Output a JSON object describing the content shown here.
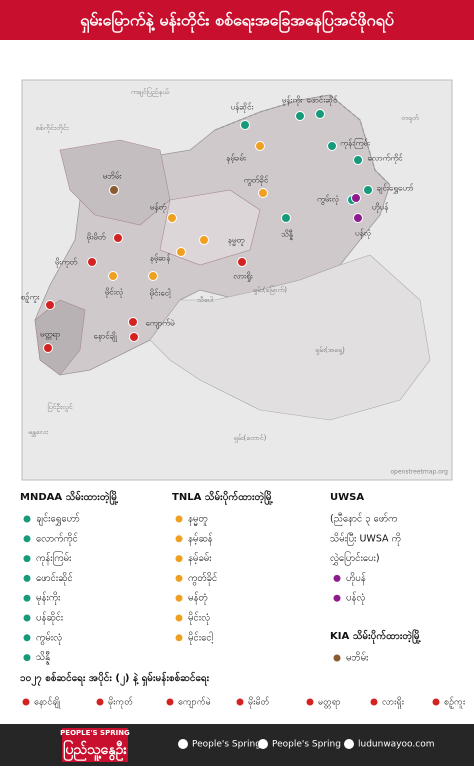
{
  "title": "ရှမ်းမြောက်နဲ့ မန်းတိုင်း စစ်ရေးအခြေအနေပြအင်ဖိုဂရပ်",
  "map": {
    "labels": [
      "စစ်ကိုင်းတိုင်း",
      "ကချင်ပြည်နယ်",
      "တရုတ်",
      "သီပေါ",
      "ပြင်ဦးလွင်",
      "မန္တလေး",
      "ရှမ်း(တောင်)",
      "ရှမ်း(အရှေ့)",
      "ရှမ်း(မြောက်)"
    ],
    "credit": "openstreetmap.org"
  },
  "legend": {
    "groups": [
      {
        "title": "MNDAA သိမ်းထားတဲ့မြို့",
        "color": "#179a7c",
        "towns": [
          "ချင်းရွှေဟော်",
          "လောက်ကိုင်",
          "ကုန်းကြမ်း",
          "ဖောင်းဆိုင်",
          "မုန်းကိုး",
          "ပန်ဆိုင်း",
          "ကွမ်းလုံ",
          "သိန္နီ"
        ]
      },
      {
        "title": "TNLA သိမ်းပိုက်ထားတဲ့မြို့",
        "color": "#f0a020",
        "towns": [
          "နမ္မတူ",
          "နမ့်ဆန်",
          "နမ့်ခမ်း",
          "ကွတ်ခိုင်",
          "မန်တုံ",
          "မိုင်းလုံ",
          "မိုင်းငေါ့"
        ]
      },
      {
        "title": "UWSA",
        "subtitle": [
          "(ညီနောင် ၃ ဖော်က",
          "သိမ်းပြီး UWSA ကို",
          "လွှဲပြောင်းပေး)"
        ],
        "color": "#8e1a8e",
        "towns": [
          "ဟိုပန်",
          "ပန်လုံ"
        ]
      },
      {
        "title": "KIA သိမ်းပိုက်ထားတဲ့မြို့",
        "color": "#8a5a30",
        "towns": [
          "မဘိမ်း"
        ]
      },
      {
        "title": "၁၀၂၇ စစ်ဆင်ရေး အပိုင်း (၂) နဲ့ ရှမ်းမန်းစစ်ဆင်ရေး",
        "color": "#d42222",
        "towns": [
          "နောင်ချို",
          "မိုးကုတ်",
          "ကျောက်မဲ",
          "မိုးမိတ်",
          "မတ္တရာ",
          "လားရှိုး",
          "စဉ့်ကူး"
        ]
      }
    ]
  },
  "footer": {
    "logo_top": "PEOPLE'S SPRING",
    "logo": "ပြည်သူ့နွေဦး",
    "facebook": "People's Spring",
    "youtube": "People's Spring",
    "website": "ludunwayoo.com"
  }
}
